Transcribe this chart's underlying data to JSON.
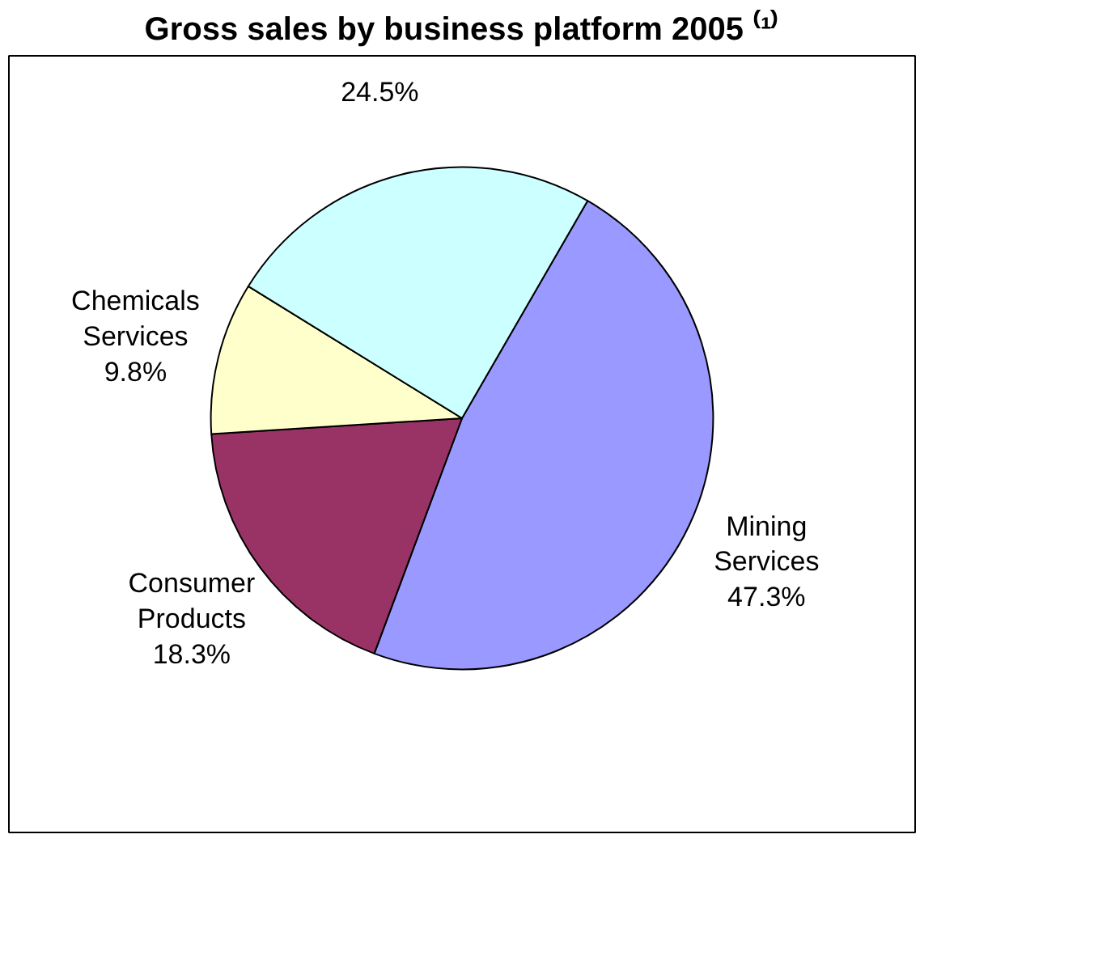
{
  "chart_data": {
    "type": "pie",
    "title": "Gross sales by business platform 2005 ⁽¹⁾",
    "categories": [
      "Mining Services",
      "Consumer Products",
      "Chemicals Services",
      null
    ],
    "values": [
      47.3,
      18.3,
      9.8,
      24.5
    ],
    "value_labels": [
      "47.3%",
      "18.3%",
      "9.8%",
      "24.5%"
    ],
    "colors": [
      "#9999ff",
      "#993366",
      "#ffffcc",
      "#ccffff"
    ]
  }
}
